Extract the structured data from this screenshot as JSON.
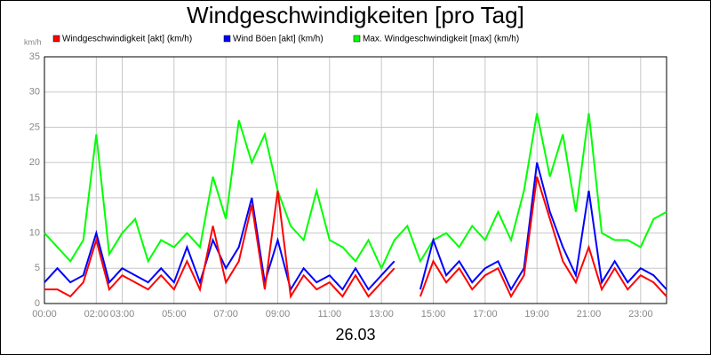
{
  "chart_data": {
    "type": "line",
    "title": "Windgeschwindigkeiten [pro Tag]",
    "y_unit": "km/h",
    "x_label": "26.03",
    "x": [
      0,
      0.5,
      1,
      1.5,
      2,
      2.5,
      3,
      3.5,
      4,
      4.5,
      5,
      5.5,
      6,
      6.5,
      7,
      7.5,
      8,
      8.5,
      9,
      9.5,
      10,
      10.5,
      11,
      11.5,
      12,
      12.5,
      13,
      13.5,
      14,
      14.5,
      15,
      15.5,
      16,
      16.5,
      17,
      17.5,
      18,
      18.5,
      19,
      19.5,
      20,
      20.5,
      21,
      21.5,
      22,
      22.5,
      23,
      23.5,
      24
    ],
    "xlim": [
      0,
      24
    ],
    "xticks": [
      {
        "value": 0,
        "label": "00:00"
      },
      {
        "value": 2,
        "label": "02:00"
      },
      {
        "value": 3,
        "label": "03:00"
      },
      {
        "value": 5,
        "label": "05:00"
      },
      {
        "value": 7,
        "label": "07:00"
      },
      {
        "value": 9,
        "label": "09:00"
      },
      {
        "value": 11,
        "label": "11:00"
      },
      {
        "value": 13,
        "label": "13:00"
      },
      {
        "value": 15,
        "label": "15:00"
      },
      {
        "value": 17,
        "label": "17:00"
      },
      {
        "value": 19,
        "label": "19:00"
      },
      {
        "value": 21,
        "label": "21:00"
      },
      {
        "value": 23,
        "label": "23:00"
      }
    ],
    "ylim": [
      0,
      35
    ],
    "yticks": [
      0,
      5,
      10,
      15,
      20,
      25,
      30,
      35
    ],
    "grid": true,
    "series": [
      {
        "name": "Windgeschwindigkeit [akt] (km/h)",
        "color": "#ff0000",
        "values": [
          2,
          2,
          1,
          3,
          9,
          2,
          4,
          3,
          2,
          4,
          2,
          6,
          2,
          11,
          3,
          6,
          14,
          2,
          16,
          1,
          4,
          2,
          3,
          1,
          4,
          1,
          3,
          5,
          null,
          1,
          6,
          3,
          5,
          2,
          4,
          5,
          1,
          4,
          18,
          12,
          6,
          3,
          8,
          2,
          5,
          2,
          4,
          3,
          1
        ]
      },
      {
        "name": "Wind Böen [akt] (km/h)",
        "color": "#0000ff",
        "values": [
          3,
          5,
          3,
          4,
          10,
          3,
          5,
          4,
          3,
          5,
          3,
          8,
          3,
          9,
          5,
          8,
          15,
          3,
          9,
          2,
          5,
          3,
          4,
          2,
          5,
          2,
          4,
          6,
          null,
          2,
          9,
          4,
          6,
          3,
          5,
          6,
          2,
          5,
          20,
          13,
          8,
          4,
          16,
          3,
          6,
          3,
          5,
          4,
          2
        ]
      },
      {
        "name": "Max. Windgeschwindigkeit [max] (km/h)",
        "color": "#00ff00",
        "values": [
          10,
          8,
          6,
          9,
          24,
          7,
          10,
          12,
          6,
          9,
          8,
          10,
          8,
          18,
          12,
          26,
          20,
          24,
          16,
          11,
          9,
          16,
          9,
          8,
          6,
          9,
          5,
          9,
          11,
          6,
          9,
          10,
          8,
          11,
          9,
          13,
          9,
          16,
          27,
          18,
          24,
          13,
          27,
          10,
          9,
          9,
          8,
          12,
          13
        ]
      }
    ]
  }
}
